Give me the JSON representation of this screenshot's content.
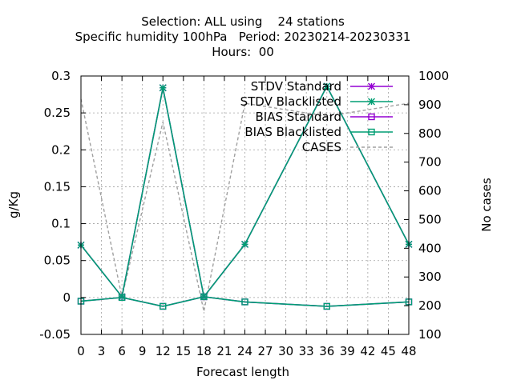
{
  "chart_data": {
    "type": "line",
    "title_lines": [
      "Selection: ALL using    24 stations",
      "Specific humidity 100hPa   Period: 20230214-20230331",
      "Hours:  00"
    ],
    "xlabel": "Forecast length",
    "ylabel": "g/Kg",
    "y2label": "No cases",
    "xlim": [
      0,
      48
    ],
    "ylim": [
      -0.05,
      0.3
    ],
    "y2lim": [
      100,
      1000
    ],
    "x_ticks": [
      0,
      3,
      6,
      9,
      12,
      15,
      18,
      21,
      24,
      27,
      30,
      33,
      36,
      39,
      42,
      45,
      48
    ],
    "y_ticks": [
      -0.05,
      0,
      0.05,
      0.1,
      0.15,
      0.2,
      0.25,
      0.3
    ],
    "y_tick_labels": [
      "-0.05",
      "0",
      "0.05",
      "0.1",
      "0.15",
      "0.2",
      "0.25",
      "0.3"
    ],
    "y2_ticks": [
      100,
      200,
      300,
      400,
      500,
      600,
      700,
      800,
      900,
      1000
    ],
    "grid": true,
    "legend_position": "top-right",
    "x": [
      0,
      6,
      12,
      18,
      24,
      36,
      48
    ],
    "series": [
      {
        "name": "STDV Standard",
        "color": "#9400d3",
        "marker": "star",
        "axis": "y",
        "values": [
          0.071,
          0.001,
          0.284,
          0.001,
          0.072,
          0.286,
          0.072
        ]
      },
      {
        "name": "STDV Blacklisted",
        "color": "#009e73",
        "marker": "star",
        "axis": "y",
        "values": [
          0.071,
          0.001,
          0.284,
          0.001,
          0.072,
          0.286,
          0.072
        ]
      },
      {
        "name": "BIAS Standard",
        "color": "#9400d3",
        "marker": "square",
        "axis": "y",
        "values": [
          -0.005,
          0.0,
          -0.012,
          0.001,
          -0.006,
          -0.012,
          -0.006
        ]
      },
      {
        "name": "BIAS Blacklisted",
        "color": "#009e73",
        "marker": "square",
        "axis": "y",
        "values": [
          -0.005,
          0.0,
          -0.012,
          0.001,
          -0.006,
          -0.012,
          -0.006
        ]
      },
      {
        "name": "CASES",
        "color": "#a0a0a0",
        "marker": "none",
        "dash": true,
        "axis": "y2",
        "values": [
          920,
          230,
          840,
          180,
          905,
          860,
          905
        ]
      }
    ]
  }
}
